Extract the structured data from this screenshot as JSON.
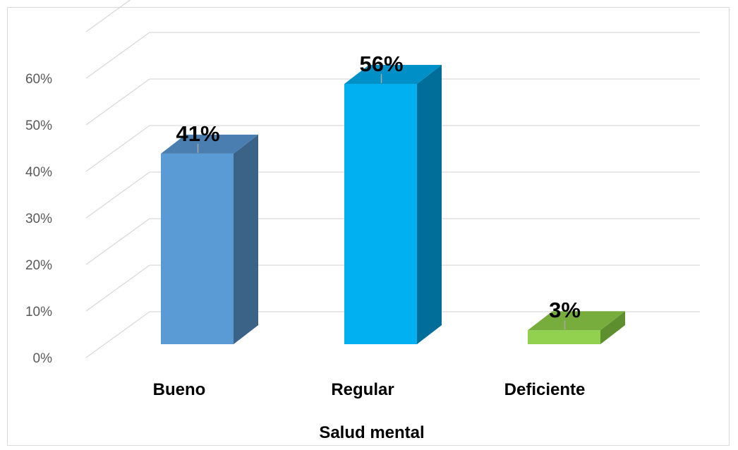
{
  "chart_data": {
    "type": "bar",
    "style": "3d-column",
    "categories": [
      "Bueno",
      "Regular",
      "Deficiente"
    ],
    "values": [
      41,
      56,
      3
    ],
    "value_labels": [
      "41%",
      "56%",
      "3%"
    ],
    "xlabel": "Salud mental",
    "ylabel": "",
    "ylim": [
      0,
      60
    ],
    "yticks": [
      "0%",
      "10%",
      "20%",
      "30%",
      "40%",
      "50%",
      "60%"
    ],
    "grid": true,
    "legend": "none",
    "colors": {
      "front": [
        "#5b9bd5",
        "#00b0f0",
        "#92d050"
      ],
      "side": [
        "#3b6287",
        "#006e99",
        "#5e8f2f"
      ],
      "top": [
        "#4a7eb0",
        "#0090c8",
        "#76ad3c"
      ],
      "grid": "#d9d9d9",
      "frame": "#d9d9d9"
    }
  }
}
